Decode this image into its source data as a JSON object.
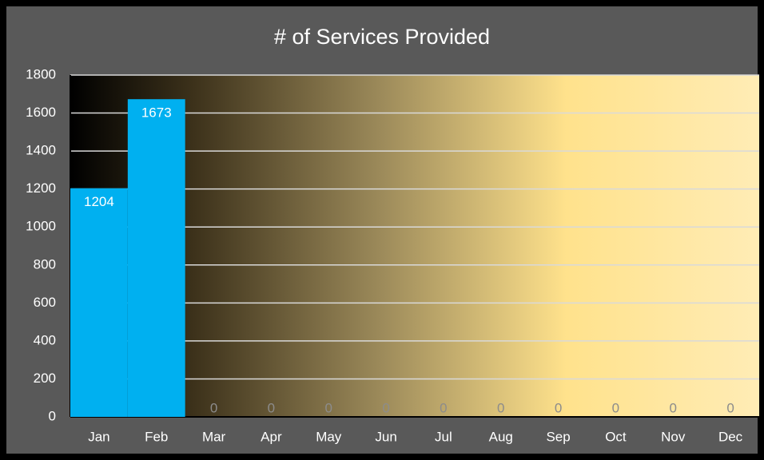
{
  "chart_data": {
    "type": "bar",
    "title": "# of Services Provided",
    "categories": [
      "Jan",
      "Feb",
      "Mar",
      "Apr",
      "May",
      "Jun",
      "Jul",
      "Aug",
      "Sep",
      "Oct",
      "Nov",
      "Dec"
    ],
    "values": [
      1204,
      1673,
      0,
      0,
      0,
      0,
      0,
      0,
      0,
      0,
      0,
      0
    ],
    "color": "#00b0f0",
    "ylim": [
      0,
      1800
    ],
    "yticks": [
      0,
      200,
      400,
      600,
      800,
      1000,
      1200,
      1400,
      1600,
      1800
    ],
    "grid": true
  }
}
